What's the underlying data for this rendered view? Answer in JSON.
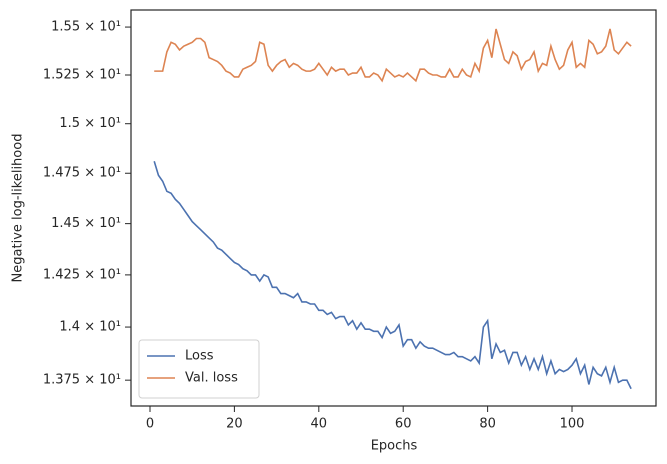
{
  "chart_data": {
    "type": "line",
    "xlabel": "Epochs",
    "ylabel": "Negative log-likelihood",
    "x": [
      1,
      2,
      3,
      4,
      5,
      6,
      7,
      8,
      9,
      10,
      11,
      12,
      13,
      14,
      15,
      16,
      17,
      18,
      19,
      20,
      21,
      22,
      23,
      24,
      25,
      26,
      27,
      28,
      29,
      30,
      31,
      32,
      33,
      34,
      35,
      36,
      37,
      38,
      39,
      40,
      41,
      42,
      43,
      44,
      45,
      46,
      47,
      48,
      49,
      50,
      51,
      52,
      53,
      54,
      55,
      56,
      57,
      58,
      59,
      60,
      61,
      62,
      63,
      64,
      65,
      66,
      67,
      68,
      69,
      70,
      71,
      72,
      73,
      74,
      75,
      76,
      77,
      78,
      79,
      80,
      81,
      82,
      83,
      84,
      85,
      86,
      87,
      88,
      89,
      90,
      91,
      92,
      93,
      94,
      95,
      96,
      97,
      98,
      99,
      100,
      101,
      102,
      103,
      104,
      105,
      106,
      107,
      108,
      109,
      110,
      111,
      112,
      113,
      114
    ],
    "series": [
      {
        "name": "Loss",
        "color": "#4c72b0",
        "values": [
          14.81,
          14.74,
          14.71,
          14.66,
          14.65,
          14.62,
          14.6,
          14.57,
          14.54,
          14.51,
          14.49,
          14.47,
          14.45,
          14.43,
          14.41,
          14.38,
          14.37,
          14.35,
          14.33,
          14.31,
          14.3,
          14.28,
          14.27,
          14.25,
          14.25,
          14.22,
          14.25,
          14.24,
          14.19,
          14.19,
          14.16,
          14.16,
          14.15,
          14.14,
          14.16,
          14.12,
          14.12,
          14.11,
          14.11,
          14.08,
          14.08,
          14.06,
          14.07,
          14.04,
          14.05,
          14.05,
          14.01,
          14.03,
          13.99,
          14.02,
          13.99,
          13.99,
          13.98,
          13.98,
          13.95,
          14.0,
          13.97,
          13.98,
          14.01,
          13.91,
          13.94,
          13.94,
          13.9,
          13.93,
          13.91,
          13.9,
          13.9,
          13.89,
          13.88,
          13.87,
          13.87,
          13.88,
          13.86,
          13.86,
          13.85,
          13.84,
          13.86,
          13.83,
          14.0,
          14.03,
          13.85,
          13.92,
          13.88,
          13.89,
          13.83,
          13.88,
          13.88,
          13.82,
          13.86,
          13.8,
          13.85,
          13.8,
          13.86,
          13.78,
          13.84,
          13.78,
          13.8,
          13.79,
          13.8,
          13.82,
          13.85,
          13.78,
          13.82,
          13.73,
          13.81,
          13.78,
          13.77,
          13.81,
          13.74,
          13.81,
          13.74,
          13.75,
          13.75,
          13.71
        ]
      },
      {
        "name": "Val. loss",
        "color": "#dd8452",
        "values": [
          15.27,
          15.27,
          15.27,
          15.37,
          15.42,
          15.41,
          15.38,
          15.4,
          15.41,
          15.42,
          15.44,
          15.44,
          15.42,
          15.34,
          15.33,
          15.32,
          15.3,
          15.27,
          15.26,
          15.24,
          15.24,
          15.28,
          15.29,
          15.3,
          15.32,
          15.42,
          15.41,
          15.3,
          15.27,
          15.3,
          15.32,
          15.33,
          15.29,
          15.31,
          15.3,
          15.28,
          15.27,
          15.27,
          15.28,
          15.31,
          15.28,
          15.25,
          15.29,
          15.27,
          15.28,
          15.28,
          15.25,
          15.26,
          15.26,
          15.29,
          15.24,
          15.24,
          15.26,
          15.25,
          15.22,
          15.28,
          15.26,
          15.24,
          15.25,
          15.24,
          15.26,
          15.24,
          15.22,
          15.28,
          15.28,
          15.26,
          15.25,
          15.25,
          15.24,
          15.24,
          15.28,
          15.24,
          15.24,
          15.28,
          15.25,
          15.24,
          15.31,
          15.27,
          15.39,
          15.43,
          15.34,
          15.49,
          15.41,
          15.33,
          15.31,
          15.37,
          15.35,
          15.28,
          15.32,
          15.33,
          15.37,
          15.27,
          15.31,
          15.3,
          15.4,
          15.33,
          15.28,
          15.3,
          15.38,
          15.42,
          15.29,
          15.31,
          15.29,
          15.43,
          15.41,
          15.36,
          15.37,
          15.4,
          15.49,
          15.38,
          15.36,
          15.39,
          15.42,
          15.4
        ]
      }
    ],
    "xlim": [
      -4.5,
      119.9
    ],
    "xticks": [
      0,
      20,
      40,
      60,
      80,
      100
    ],
    "ylim": [
      13.63,
      15.59
    ],
    "ylog": true,
    "yticks": [
      {
        "value": 13.75,
        "label": "1.375 × 10¹"
      },
      {
        "value": 14,
        "label": "1.4 × 10¹"
      },
      {
        "value": 14.25,
        "label": "1.425 × 10¹"
      },
      {
        "value": 14.5,
        "label": "1.45 × 10¹"
      },
      {
        "value": 14.75,
        "label": "1.475 × 10¹"
      },
      {
        "value": 15,
        "label": "1.5 × 10¹"
      },
      {
        "value": 15.25,
        "label": "1.525 × 10¹"
      },
      {
        "value": 15.5,
        "label": "1.55 × 10¹"
      }
    ],
    "legend": "lower left",
    "grid": false
  }
}
